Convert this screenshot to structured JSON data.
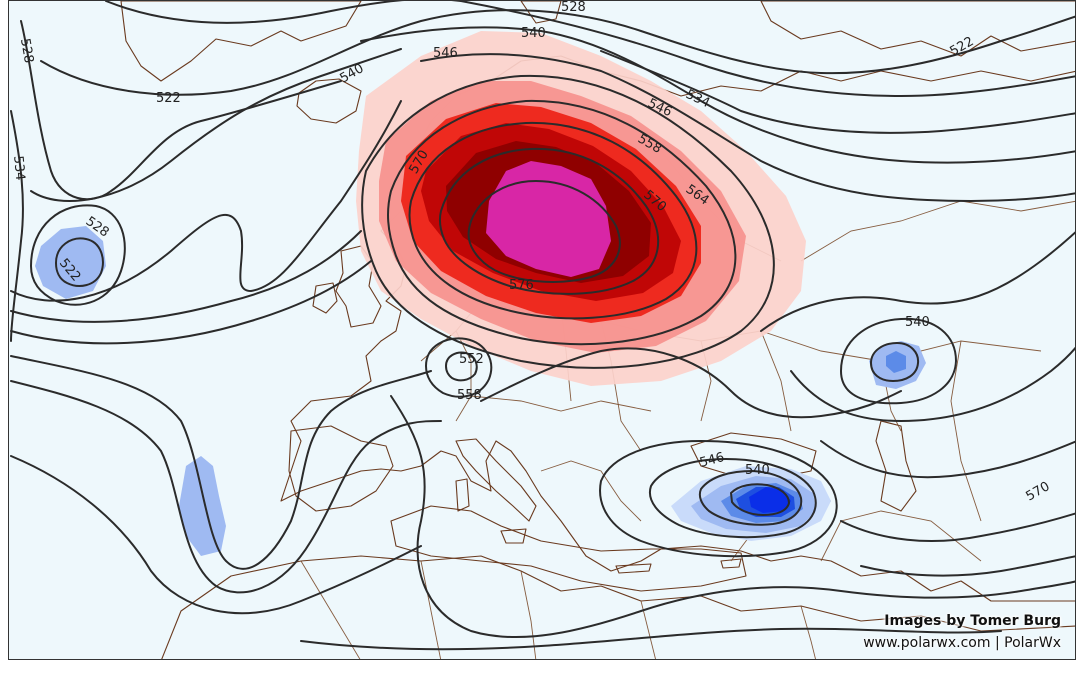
{
  "map": {
    "contour_labels": [
      {
        "id": "c528-top",
        "text": "528"
      },
      {
        "id": "c540-top",
        "text": "540"
      },
      {
        "id": "c522-ne",
        "text": "522"
      },
      {
        "id": "c528-west",
        "text": "528"
      },
      {
        "id": "c522-nw",
        "text": "522"
      },
      {
        "id": "c534-west",
        "text": "534"
      },
      {
        "id": "c540-nw",
        "text": "540"
      },
      {
        "id": "c546-n",
        "text": "546"
      },
      {
        "id": "c546-ne",
        "text": "546"
      },
      {
        "id": "c534-ne",
        "text": "534"
      },
      {
        "id": "c558-n",
        "text": "558"
      },
      {
        "id": "c564-e",
        "text": "564"
      },
      {
        "id": "c570-w",
        "text": "570"
      },
      {
        "id": "c570-e",
        "text": "570"
      },
      {
        "id": "c576",
        "text": "576"
      },
      {
        "id": "c528-low",
        "text": "528"
      },
      {
        "id": "c522-low",
        "text": "522"
      },
      {
        "id": "c552-alps",
        "text": "552"
      },
      {
        "id": "c558-alps",
        "text": "558"
      },
      {
        "id": "c540-ural",
        "text": "540"
      },
      {
        "id": "c546-bal",
        "text": "546"
      },
      {
        "id": "c540-bal",
        "text": "540"
      },
      {
        "id": "c570-se",
        "text": "570"
      }
    ],
    "colors": {
      "ocean": "#eef8fc",
      "land": "#fdf3e6",
      "contour": "#2b2b2b",
      "warm_1": "#fcd1cb",
      "warm_2": "#f7948f",
      "warm_3": "#ee2a1f",
      "warm_4": "#c00606",
      "warm_5": "#8f0000",
      "warm_6": "#d826a6",
      "cold_1": "#c9dbfa",
      "cold_2": "#9fbaf2",
      "cold_3": "#5c8be8",
      "cold_4": "#1e4fe0",
      "cold_5": "#0a2ee8"
    }
  },
  "credit": {
    "line1": "Images by Tomer Burg",
    "line2": "www.polarwx.com | PolarWx"
  }
}
